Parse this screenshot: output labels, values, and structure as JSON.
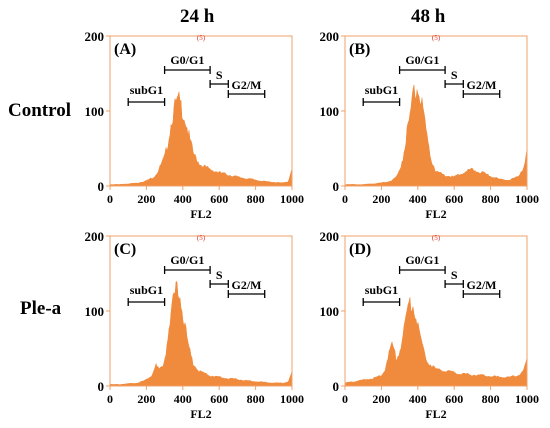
{
  "columns": [
    "24 h",
    "48 h"
  ],
  "rows": [
    "Control",
    "Ple-a"
  ],
  "gate_markers": [
    {
      "label": "subG1",
      "start": 100,
      "end": 300
    },
    {
      "label": "G0/G1",
      "start": 300,
      "end": 550
    },
    {
      "label": "S",
      "start": 550,
      "end": 650
    },
    {
      "label": "G2/M",
      "start": 650,
      "end": 850
    }
  ],
  "colors": {
    "histogram": "#f08a3c",
    "frame": "#f0a06a",
    "top_marker": "#e03020",
    "text": "#000000"
  },
  "chart_data": [
    {
      "type": "area",
      "panel_label": "(A)",
      "top_label": "(5)",
      "xlabel": "FL2",
      "ylabel": "",
      "xlim": [
        0,
        1000
      ],
      "ylim": [
        0,
        200
      ],
      "xticks": [
        0,
        200,
        400,
        600,
        800,
        1000
      ],
      "yticks": [
        0,
        100,
        200
      ],
      "x": [
        0,
        50,
        100,
        150,
        200,
        240,
        260,
        280,
        300,
        320,
        340,
        360,
        380,
        400,
        420,
        440,
        460,
        480,
        500,
        550,
        600,
        650,
        700,
        750,
        800,
        850,
        900,
        950,
        980,
        1000
      ],
      "values": [
        2,
        2,
        3,
        4,
        7,
        12,
        18,
        28,
        38,
        60,
        90,
        108,
        113,
        100,
        82,
        60,
        42,
        34,
        28,
        22,
        18,
        15,
        12,
        10,
        8,
        6,
        5,
        4,
        6,
        25
      ]
    },
    {
      "type": "area",
      "panel_label": "(B)",
      "top_label": "(5)",
      "xlabel": "FL2",
      "ylabel": "",
      "xlim": [
        0,
        1000
      ],
      "ylim": [
        0,
        200
      ],
      "xticks": [
        0,
        200,
        400,
        600,
        800,
        1000
      ],
      "yticks": [
        0,
        100,
        200
      ],
      "x": [
        0,
        50,
        100,
        150,
        200,
        240,
        260,
        280,
        300,
        320,
        340,
        360,
        380,
        400,
        420,
        440,
        460,
        480,
        500,
        550,
        600,
        650,
        700,
        750,
        800,
        850,
        900,
        950,
        980,
        1000
      ],
      "values": [
        2,
        2,
        2,
        3,
        4,
        6,
        8,
        12,
        20,
        40,
        70,
        100,
        125,
        130,
        110,
        80,
        50,
        30,
        20,
        14,
        12,
        18,
        22,
        18,
        13,
        9,
        8,
        12,
        25,
        45
      ]
    },
    {
      "type": "area",
      "panel_label": "(C)",
      "top_label": "(5)",
      "xlabel": "FL2",
      "ylabel": "",
      "xlim": [
        0,
        1000
      ],
      "ylim": [
        0,
        200
      ],
      "xticks": [
        0,
        200,
        400,
        600,
        800,
        1000
      ],
      "yticks": [
        0,
        100,
        200
      ],
      "x": [
        0,
        50,
        100,
        150,
        200,
        230,
        250,
        270,
        290,
        310,
        330,
        350,
        370,
        390,
        410,
        430,
        450,
        470,
        500,
        550,
        600,
        650,
        700,
        750,
        800,
        850,
        900,
        950,
        980,
        1000
      ],
      "values": [
        2,
        2,
        3,
        4,
        8,
        15,
        28,
        22,
        25,
        50,
        90,
        118,
        128,
        115,
        85,
        55,
        35,
        25,
        18,
        14,
        12,
        10,
        9,
        7,
        6,
        5,
        4,
        4,
        6,
        18
      ]
    },
    {
      "type": "area",
      "panel_label": "(D)",
      "top_label": "(5)",
      "xlabel": "FL2",
      "ylabel": "",
      "xlim": [
        0,
        1000
      ],
      "ylim": [
        0,
        200
      ],
      "xticks": [
        0,
        200,
        400,
        600,
        800,
        1000
      ],
      "yticks": [
        0,
        100,
        200
      ],
      "x": [
        0,
        50,
        100,
        150,
        200,
        220,
        240,
        260,
        280,
        300,
        320,
        340,
        360,
        380,
        400,
        420,
        440,
        460,
        500,
        550,
        600,
        650,
        700,
        750,
        800,
        850,
        900,
        950,
        980,
        1000
      ],
      "values": [
        4,
        6,
        8,
        10,
        14,
        22,
        45,
        55,
        38,
        45,
        70,
        95,
        112,
        105,
        85,
        60,
        40,
        30,
        22,
        20,
        18,
        16,
        15,
        14,
        13,
        12,
        12,
        14,
        20,
        35
      ]
    }
  ]
}
